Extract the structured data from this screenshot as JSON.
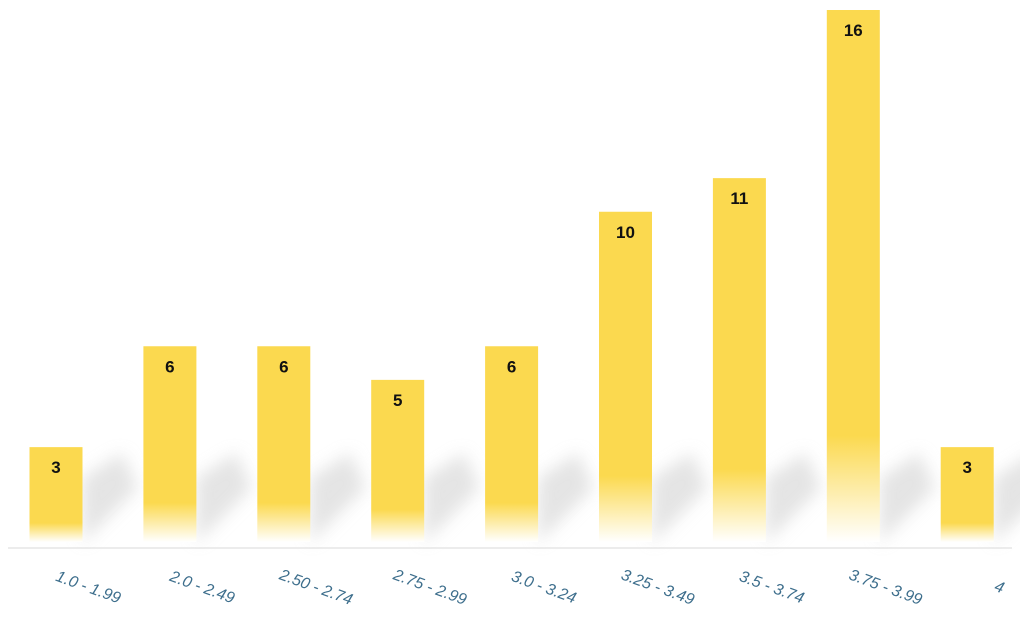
{
  "chart_data": {
    "type": "bar",
    "title": "",
    "xlabel": "",
    "ylabel": "",
    "categories": [
      "1.0 - 1.99",
      "2.0 - 2.49",
      "2.50 - 2.74",
      "2.75 - 2.99",
      "3.0 - 3.24",
      "3.25 - 3.49",
      "3.5 - 3.74",
      "3.75 - 3.99",
      "4"
    ],
    "values": [
      3,
      6,
      6,
      5,
      6,
      10,
      11,
      16,
      3
    ],
    "value_labels": [
      "3",
      "6",
      "6",
      "5",
      "6",
      "10",
      "11",
      "16",
      "3"
    ],
    "ylim": [
      0,
      16
    ],
    "grid": false,
    "legend": "none",
    "data_labels": "inside-top"
  },
  "colors": {
    "bar": "#fbd94f",
    "bar_fade": "#ffffff",
    "value_text": "#111111",
    "tick_text": "#3d6e8c",
    "baseline": "#d9d9d9"
  }
}
